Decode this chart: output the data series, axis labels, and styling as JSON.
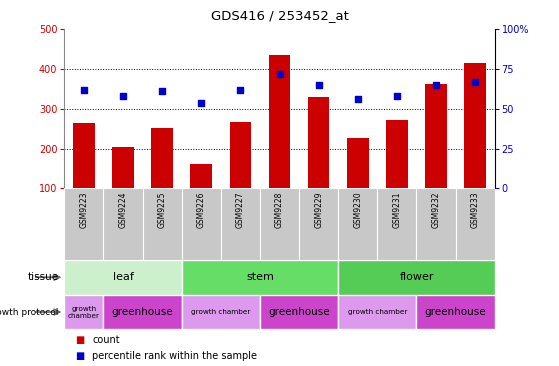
{
  "title": "GDS416 / 253452_at",
  "samples": [
    "GSM9223",
    "GSM9224",
    "GSM9225",
    "GSM9226",
    "GSM9227",
    "GSM9228",
    "GSM9229",
    "GSM9230",
    "GSM9231",
    "GSM9232",
    "GSM9233"
  ],
  "counts": [
    265,
    205,
    253,
    162,
    268,
    435,
    330,
    228,
    272,
    363,
    415
  ],
  "percentiles": [
    62,
    58,
    61,
    54,
    62,
    72,
    65,
    56,
    58,
    65,
    67
  ],
  "ylim_left": [
    100,
    500
  ],
  "ylim_right": [
    0,
    100
  ],
  "yticks_left": [
    100,
    200,
    300,
    400,
    500
  ],
  "yticks_right": [
    0,
    25,
    50,
    75,
    100
  ],
  "ytick_labels_right": [
    "0",
    "25",
    "50",
    "75",
    "100%"
  ],
  "bar_color": "#cc0000",
  "scatter_color": "#0000cc",
  "xlab_bg": "#c8c8c8",
  "tissue_groups": [
    {
      "label": "leaf",
      "start": 0,
      "end": 3,
      "color": "#ccf0cc"
    },
    {
      "label": "stem",
      "start": 3,
      "end": 7,
      "color": "#66dd66"
    },
    {
      "label": "flower",
      "start": 7,
      "end": 11,
      "color": "#55cc55"
    }
  ],
  "growth_groups": [
    {
      "label": "growth\nchamber",
      "start": 0,
      "end": 1,
      "color": "#dd99ee",
      "small": true
    },
    {
      "label": "greenhouse",
      "start": 1,
      "end": 3,
      "color": "#cc44cc",
      "small": false
    },
    {
      "label": "growth chamber",
      "start": 3,
      "end": 5,
      "color": "#dd99ee",
      "small": true
    },
    {
      "label": "greenhouse",
      "start": 5,
      "end": 7,
      "color": "#cc44cc",
      "small": false
    },
    {
      "label": "growth chamber",
      "start": 7,
      "end": 9,
      "color": "#dd99ee",
      "small": true
    },
    {
      "label": "greenhouse",
      "start": 9,
      "end": 11,
      "color": "#cc44cc",
      "small": false
    }
  ],
  "bg_color": "#ffffff",
  "grid_color": "#000000",
  "tick_color_left": "#cc0000",
  "tick_color_right": "#0000cc"
}
